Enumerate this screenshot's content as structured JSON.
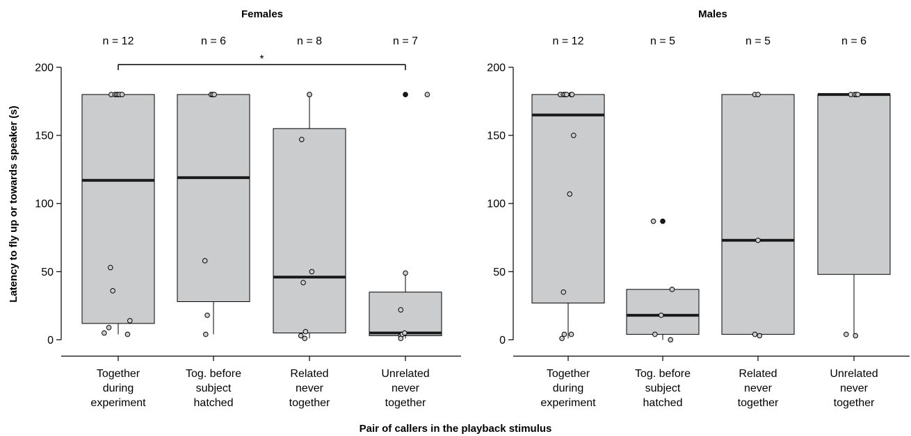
{
  "colors": {
    "box_fill": "#cbcccd",
    "median": "#1a1a1a",
    "open_point_fill": "#cbcccd",
    "outlier_fill": "#1a1a1a"
  },
  "shared": {
    "ylabel": "Latency to fly up or towards speaker (s)",
    "xlabel": "Pair of callers in the playback stimulus"
  },
  "chart_data": [
    {
      "type": "box",
      "title": "Females",
      "ylim": [
        -12,
        230
      ],
      "yticks": [
        0,
        50,
        100,
        150,
        200
      ],
      "categories": [
        [
          "Together",
          "during",
          "experiment"
        ],
        [
          "Tog. before",
          "subject",
          "hatched"
        ],
        [
          "Related",
          "never",
          "together"
        ],
        [
          "Unrelated",
          "never",
          "together"
        ]
      ],
      "n_labels": [
        "n = 12",
        "n = 6",
        "n = 8",
        "n = 7"
      ],
      "boxes": [
        {
          "q1": 12,
          "median": 117,
          "q3": 180,
          "whisker_low": 4,
          "whisker_high": 180,
          "outliers": []
        },
        {
          "q1": 28,
          "median": 119,
          "q3": 180,
          "whisker_low": 4,
          "whisker_high": 180,
          "outliers": []
        },
        {
          "q1": 5,
          "median": 46,
          "q3": 155,
          "whisker_low": 1,
          "whisker_high": 180,
          "outliers": []
        },
        {
          "q1": 3,
          "median": 5,
          "q3": 35,
          "whisker_low": 1,
          "whisker_high": 49,
          "outliers": [
            180
          ]
        }
      ],
      "points": [
        [
          [
            -0.45,
            180
          ],
          [
            -0.2,
            180
          ],
          [
            -0.1,
            180
          ],
          [
            0.0,
            180
          ],
          [
            0.1,
            180
          ],
          [
            0.25,
            180
          ],
          [
            -0.5,
            53
          ],
          [
            -0.35,
            36
          ],
          [
            -0.6,
            9
          ],
          [
            -0.9,
            5
          ],
          [
            0.6,
            4
          ],
          [
            0.75,
            14
          ]
        ],
        [
          [
            -0.15,
            180
          ],
          [
            -0.05,
            180
          ],
          [
            0.05,
            180
          ],
          [
            -0.55,
            58
          ],
          [
            -0.4,
            18
          ],
          [
            -0.5,
            4
          ]
        ],
        [
          [
            0.0,
            180
          ],
          [
            0.0,
            180
          ],
          [
            -0.5,
            147
          ],
          [
            -0.4,
            42
          ],
          [
            0.15,
            50
          ],
          [
            -0.25,
            6
          ],
          [
            -0.55,
            3
          ],
          [
            -0.3,
            1
          ]
        ],
        [
          [
            1.4,
            180
          ],
          [
            -0.3,
            22
          ],
          [
            0.0,
            49
          ],
          [
            -0.3,
            3
          ],
          [
            -0.2,
            4
          ],
          [
            -0.05,
            5
          ],
          [
            -0.3,
            1
          ]
        ]
      ],
      "significance": {
        "from": 0,
        "to": 3,
        "label": "*",
        "y": 202
      }
    },
    {
      "type": "box",
      "title": "Males",
      "ylim": [
        -12,
        230
      ],
      "yticks": [
        0,
        50,
        100,
        150,
        200
      ],
      "categories": [
        [
          "Together",
          "during",
          "experiment"
        ],
        [
          "Tog. before",
          "subject",
          "hatched"
        ],
        [
          "Related",
          "never",
          "together"
        ],
        [
          "Unrelated",
          "never",
          "together"
        ]
      ],
      "n_labels": [
        "n = 12",
        "n = 5",
        "n = 5",
        "n = 6"
      ],
      "boxes": [
        {
          "q1": 27,
          "median": 165,
          "q3": 180,
          "whisker_low": 1,
          "whisker_high": 180,
          "outliers": []
        },
        {
          "q1": 4,
          "median": 18,
          "q3": 37,
          "whisker_low": 0,
          "whisker_high": 37,
          "outliers": [
            87
          ]
        },
        {
          "q1": 4,
          "median": 73,
          "q3": 180,
          "whisker_low": 3,
          "whisker_high": 180,
          "outliers": []
        },
        {
          "q1": 48,
          "median": 180,
          "q3": 180,
          "whisker_low": 3,
          "whisker_high": 180,
          "outliers": []
        }
      ],
      "points": [
        [
          [
            -0.5,
            180
          ],
          [
            -0.3,
            180
          ],
          [
            -0.2,
            180
          ],
          [
            -0.1,
            180
          ],
          [
            0.2,
            180
          ],
          [
            0.25,
            180
          ],
          [
            0.35,
            150
          ],
          [
            0.1,
            107
          ],
          [
            -0.3,
            35
          ],
          [
            -0.4,
            1
          ],
          [
            -0.25,
            4
          ],
          [
            0.2,
            4
          ]
        ],
        [
          [
            -0.6,
            87
          ],
          [
            0.6,
            37
          ],
          [
            -0.1,
            18
          ],
          [
            -0.5,
            4
          ],
          [
            0.5,
            0
          ]
        ],
        [
          [
            -0.2,
            180
          ],
          [
            0.0,
            180
          ],
          [
            0.0,
            73
          ],
          [
            -0.2,
            4
          ],
          [
            0.1,
            3
          ]
        ],
        [
          [
            -0.2,
            180
          ],
          [
            0.05,
            180
          ],
          [
            0.15,
            180
          ],
          [
            0.25,
            180
          ],
          [
            -0.5,
            4
          ],
          [
            0.1,
            3
          ]
        ]
      ]
    }
  ]
}
